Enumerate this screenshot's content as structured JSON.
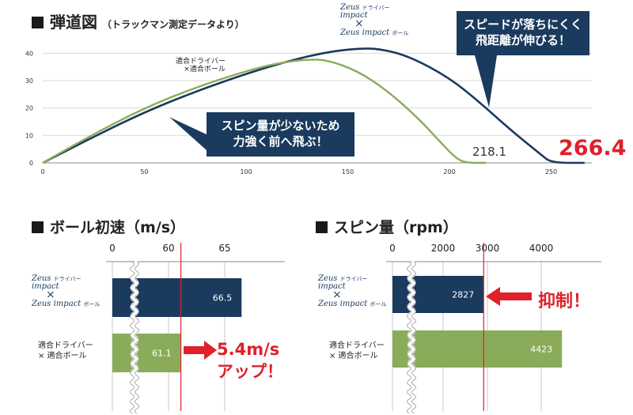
{
  "page": {
    "trajectory": {
      "title": "弾道図",
      "subtitle": "（トラックマン測定データより）",
      "callout_right": [
        "スピードが落ちにくく",
        "飛距離が伸びる！"
      ],
      "callout_left": [
        "スピン量が少ないため",
        "力強く前へ飛ぶ！"
      ],
      "label_green": [
        "適合ドライバー",
        "×適合ボール"
      ],
      "logo_lines": [
        "Zeus",
        "impact",
        "Driver",
        "×",
        "Zeus",
        "impact",
        "ボール"
      ],
      "logo_driver_word": "ドライバー",
      "result_green": "218.1",
      "result_navy": "266.4"
    },
    "speed": {
      "title": "ボール初速",
      "unit": "（m/s）",
      "label_green": [
        "適合ドライバー",
        "× 適合ボール"
      ],
      "logo_driver_word": "ドライバー",
      "logo_ball_word": "ボール",
      "up_text": [
        "5.4m/s",
        "アップ！"
      ]
    },
    "spin": {
      "title": "スピン量",
      "unit": "（rpm）",
      "label_green": [
        "適合ドライバー",
        "× 適合ボール"
      ],
      "logo_driver_word": "ドライバー",
      "logo_ball_word": "ボール",
      "suppress_text": "抑制！"
    }
  },
  "colors": {
    "navy": "#1a3a5e",
    "green": "#8aac5a",
    "red": "#e0202a",
    "grid": "#d9d9d9"
  },
  "chart_data": [
    {
      "type": "line",
      "title": "弾道図",
      "xlim": [
        0,
        270
      ],
      "ylim": [
        0,
        45
      ],
      "xticks": [
        0,
        50,
        100,
        150,
        200,
        250
      ],
      "yticks": [
        0,
        10,
        20,
        30,
        40
      ],
      "grid": true,
      "series": [
        {
          "color": "navy",
          "points": [
            [
              0,
              0
            ],
            [
              25,
              9.5
            ],
            [
              50,
              18.5
            ],
            [
              75,
              26
            ],
            [
              100,
              32.5
            ],
            [
              120,
              37
            ],
            [
              140,
              40.5
            ],
            [
              155,
              41.7
            ],
            [
              165,
              41.7
            ],
            [
              180,
              39
            ],
            [
              200,
              31
            ],
            [
              215,
              22
            ],
            [
              230,
              12
            ],
            [
              245,
              3
            ],
            [
              250,
              0
            ],
            [
              266.4,
              0
            ]
          ]
        },
        {
          "color": "green",
          "points": [
            [
              0,
              0
            ],
            [
              25,
              10.5
            ],
            [
              50,
              20
            ],
            [
              75,
              27.5
            ],
            [
              100,
              33.5
            ],
            [
              115,
              36.3
            ],
            [
              130,
              37.8
            ],
            [
              140,
              37.5
            ],
            [
              155,
              33.5
            ],
            [
              170,
              26
            ],
            [
              185,
              16
            ],
            [
              195,
              8
            ],
            [
              202,
              2.5
            ],
            [
              207,
              0
            ],
            [
              218.1,
              0
            ]
          ]
        }
      ]
    },
    {
      "type": "bar",
      "title": "ボール初速",
      "axis_ticks": [
        0,
        60,
        65
      ],
      "axis_break": true,
      "marker_line": 61.1,
      "bars": [
        {
          "color": "navy",
          "value": 66.5
        },
        {
          "color": "green",
          "value": 61.1
        }
      ]
    },
    {
      "type": "bar",
      "title": "スピン量",
      "axis_ticks": [
        0,
        2000,
        3000,
        4000
      ],
      "axis_break": true,
      "marker_line": 2827,
      "bars": [
        {
          "color": "navy",
          "value": 2827
        },
        {
          "color": "green",
          "value": 4423
        }
      ]
    }
  ]
}
